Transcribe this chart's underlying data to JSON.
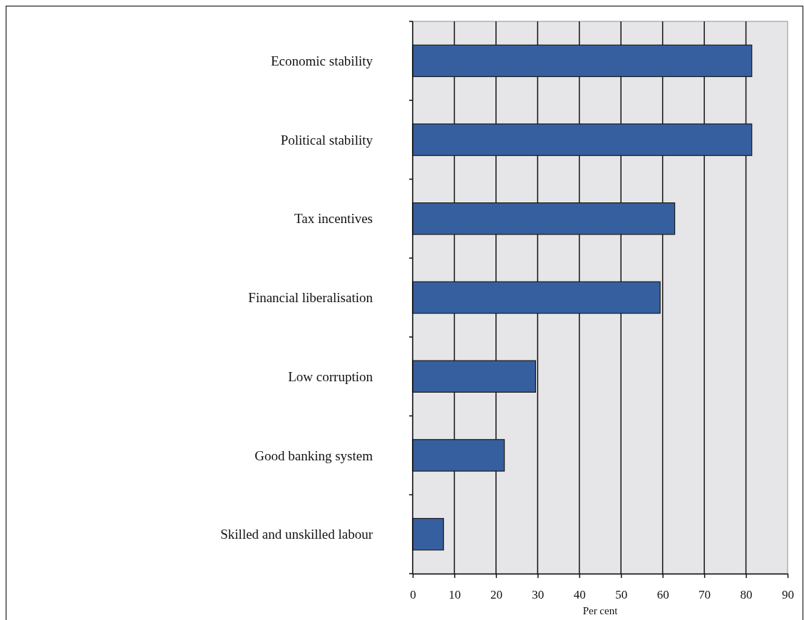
{
  "chart_data": {
    "type": "bar",
    "orientation": "horizontal",
    "categories": [
      "Economic stability",
      "Political stability",
      "Tax incentives",
      "Financial liberalisation",
      "Low corruption",
      "Good banking system",
      "Skilled and unskilled labour"
    ],
    "values": [
      81.4,
      81.4,
      62.9,
      59.4,
      29.5,
      22.0,
      7.4
    ],
    "color": "#365f9f",
    "xlim": [
      0,
      90
    ],
    "xticks": [
      0,
      10,
      20,
      30,
      40,
      50,
      60,
      70,
      80,
      90
    ],
    "xlabel": "Per cent",
    "grid": "x"
  }
}
